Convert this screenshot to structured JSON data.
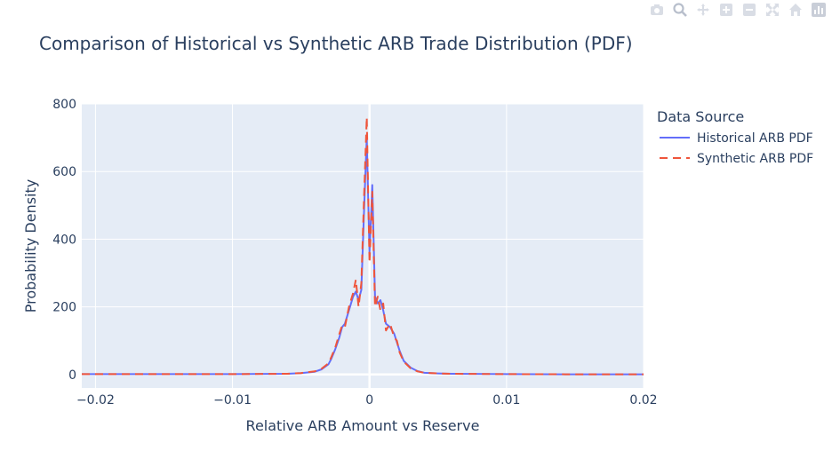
{
  "chart_data": {
    "type": "line",
    "title": "Comparison of Historical vs Synthetic ARB Trade Distribution (PDF)",
    "xlabel": "Relative ARB Amount vs Reserve",
    "ylabel": "Probability Density",
    "xlim": [
      -0.021,
      0.02
    ],
    "ylim": [
      -40,
      800
    ],
    "x_ticks": [
      -0.02,
      -0.01,
      0,
      0.01,
      0.02
    ],
    "x_tick_labels": [
      "−0.02",
      "−0.01",
      "0",
      "0.01",
      "0.02"
    ],
    "y_ticks": [
      0,
      200,
      400,
      600,
      800
    ],
    "y_tick_labels": [
      "0",
      "200",
      "400",
      "600",
      "800"
    ],
    "grid": true,
    "legend_title": "Data Source",
    "legend_position": "right",
    "plot_bg": "#E5ECF6",
    "series": [
      {
        "name": "Historical ARB PDF",
        "color": "#636EFA",
        "dash": "solid",
        "x": [
          -0.021,
          -0.015,
          -0.01,
          -0.006,
          -0.005,
          -0.004,
          -0.0035,
          -0.003,
          -0.0028,
          -0.0025,
          -0.0022,
          -0.002,
          -0.0018,
          -0.0015,
          -0.0012,
          -0.001,
          -0.0008,
          -0.0006,
          -0.0004,
          -0.0002,
          0,
          0.0002,
          0.0004,
          0.0006,
          0.0008,
          0.001,
          0.0012,
          0.0015,
          0.0018,
          0.002,
          0.0022,
          0.0025,
          0.003,
          0.0035,
          0.004,
          0.005,
          0.006,
          0.01,
          0.015,
          0.02
        ],
        "y": [
          1,
          1,
          1,
          2,
          4,
          8,
          15,
          30,
          45,
          75,
          110,
          140,
          150,
          190,
          230,
          245,
          220,
          250,
          480,
          700,
          360,
          560,
          230,
          210,
          220,
          190,
          150,
          140,
          120,
          95,
          70,
          40,
          20,
          10,
          5,
          3,
          2,
          1,
          0.5,
          0.3
        ]
      },
      {
        "name": "Synthetic ARB PDF",
        "color": "#EF553B",
        "dash": "dash",
        "x": [
          -0.021,
          -0.015,
          -0.01,
          -0.006,
          -0.005,
          -0.004,
          -0.0035,
          -0.003,
          -0.0028,
          -0.0025,
          -0.0022,
          -0.002,
          -0.0018,
          -0.0015,
          -0.0012,
          -0.001,
          -0.0008,
          -0.0006,
          -0.0004,
          -0.0002,
          0,
          0.0002,
          0.0004,
          0.0006,
          0.0008,
          0.001,
          0.0012,
          0.0015,
          0.0018,
          0.002,
          0.0022,
          0.0025,
          0.003,
          0.0035,
          0.004,
          0.005,
          0.006,
          0.01,
          0.015,
          0.02
        ],
        "y": [
          1,
          1,
          1,
          2,
          4,
          9,
          17,
          33,
          50,
          80,
          120,
          145,
          140,
          200,
          240,
          280,
          200,
          270,
          520,
          760,
          330,
          540,
          200,
          230,
          190,
          210,
          130,
          150,
          110,
          100,
          65,
          38,
          18,
          9,
          5,
          3,
          2,
          1,
          0.5,
          0.3
        ]
      }
    ]
  },
  "modebar": {
    "icons": [
      "camera-icon",
      "zoom-icon",
      "pan-icon",
      "zoom-in-icon",
      "zoom-out-icon",
      "autoscale-icon",
      "home-icon",
      "plotly-logo-icon"
    ]
  }
}
